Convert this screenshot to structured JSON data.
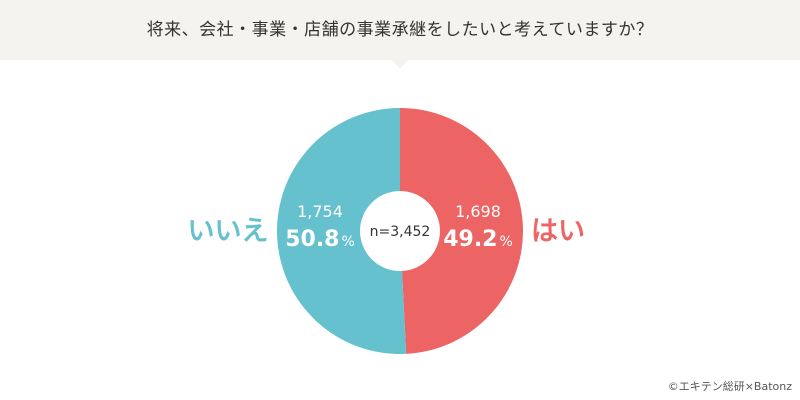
{
  "header": {
    "title": "将来、会社・事業・店舗の事業承継をしたいと考えていますか？"
  },
  "chart_data": {
    "type": "pie",
    "donut": true,
    "title": "将来、会社・事業・店舗の事業承継をしたいと考えていますか？",
    "center_label": "n=3,452",
    "categories": [
      "はい",
      "いいえ"
    ],
    "values": [
      49.2,
      50.8
    ],
    "counts": [
      "1,698",
      "1,754"
    ],
    "percent_labels": [
      "49.2",
      "50.8"
    ],
    "percent_unit": "%",
    "colors": [
      "#ec6463",
      "#66c1cf"
    ],
    "legend_placement": "labels beside slices"
  },
  "footer": {
    "copyright": "©エキテン総研×Batonz"
  }
}
